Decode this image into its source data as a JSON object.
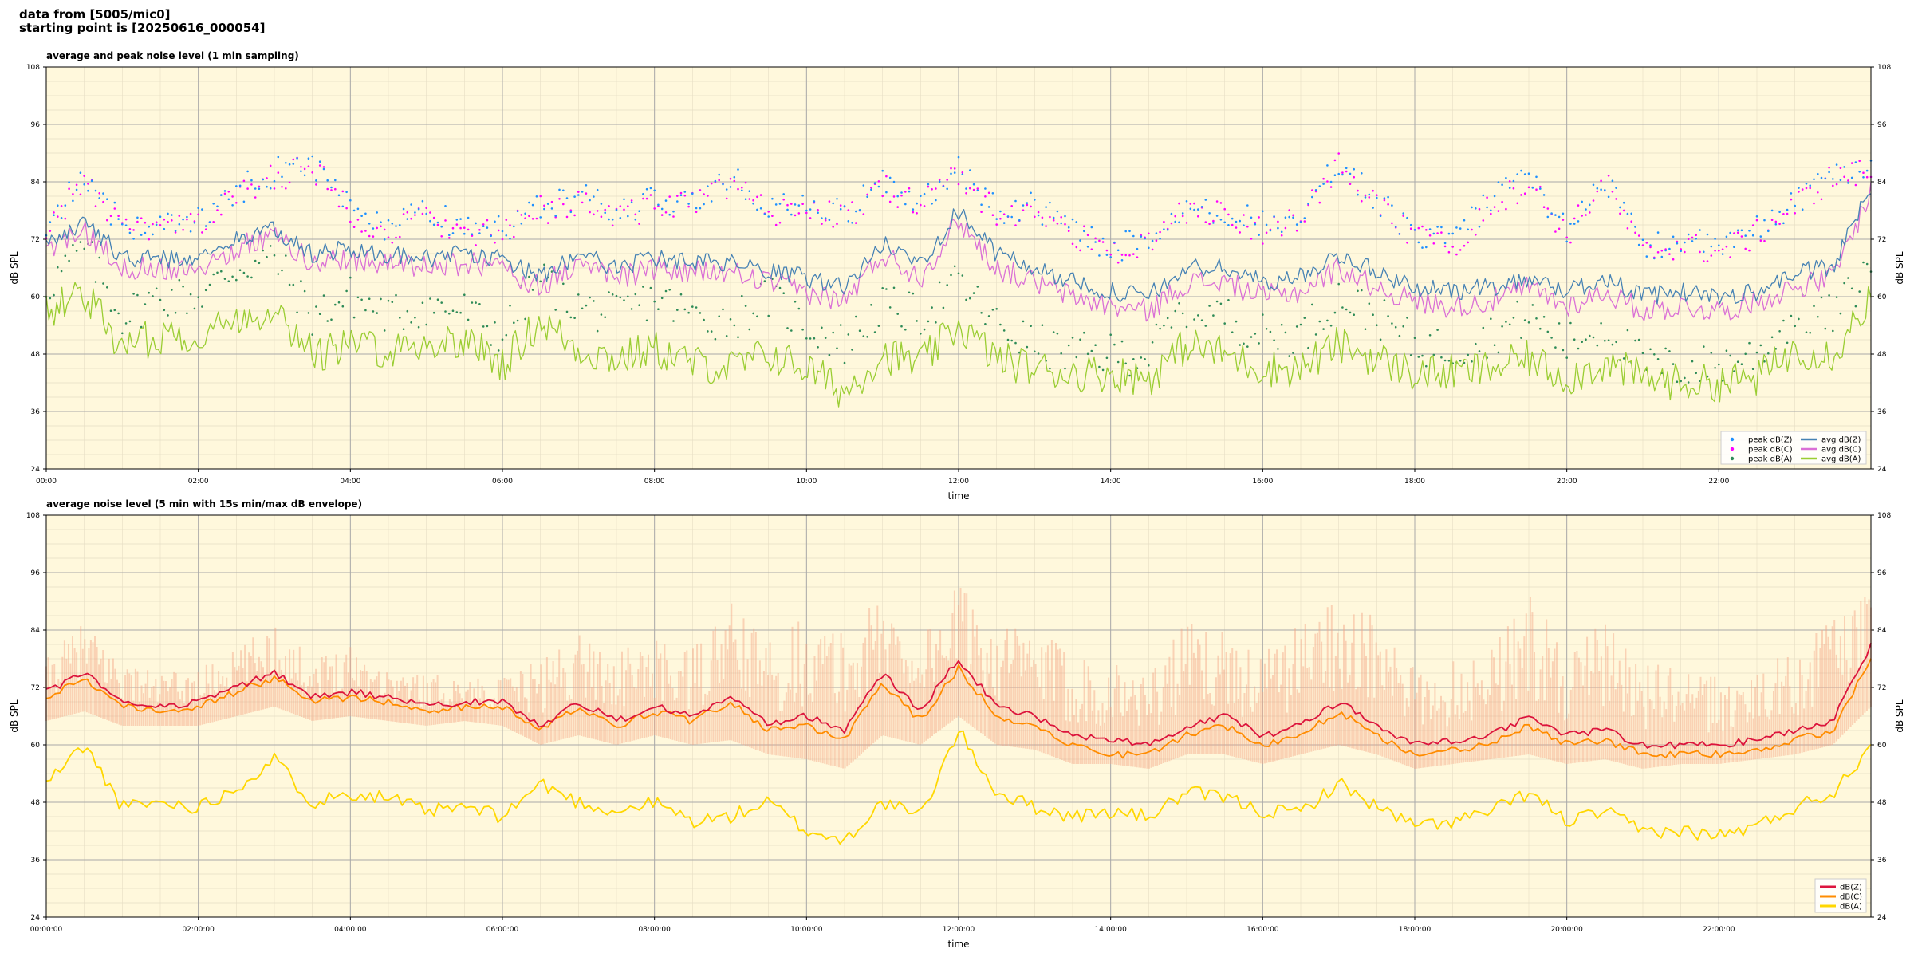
{
  "header": {
    "line1": "data from [5005/mic0]",
    "line2": "starting point is [20250616_000054]"
  },
  "colors": {
    "plot_bg": "#fff8dc",
    "avg_z": "#4682b4",
    "avg_c": "#da70d6",
    "avg_a": "#9acd32",
    "peak_z": "#1e90ff",
    "peak_c": "#ff00ff",
    "peak_a": "#2e8b57",
    "env_fill": "#f4a582",
    "five_z": "#dc143c",
    "five_c": "#ff8c00",
    "five_a": "#ffd700"
  },
  "chart_data": [
    {
      "type": "line",
      "title": "average and peak noise level (1 min sampling)",
      "xlabel": "time",
      "ylabel": "dB SPL",
      "y_right_label": "dB SPL",
      "ylim": [
        24,
        108
      ],
      "xlim_hours": [
        0,
        24
      ],
      "yticks": [
        "24",
        "36",
        "48",
        "60",
        "72",
        "84",
        "96",
        "108"
      ],
      "xticks": [
        "00:00",
        "02:00",
        "04:00",
        "06:00",
        "08:00",
        "10:00",
        "12:00",
        "14:00",
        "16:00",
        "18:00",
        "20:00",
        "22:00"
      ],
      "grid": true,
      "legend_position": "lower right",
      "legend": [
        "peak dB(Z)",
        "peak dB(C)",
        "peak dB(A)",
        "avg dB(Z)",
        "avg dB(C)",
        "avg dB(A)"
      ],
      "x_hours": [
        0,
        0.5,
        1,
        1.5,
        2,
        2.5,
        3,
        3.5,
        4,
        4.5,
        5,
        5.5,
        6,
        6.5,
        7,
        7.5,
        8,
        8.5,
        9,
        9.5,
        10,
        10.5,
        11,
        11.5,
        12,
        12.5,
        13,
        13.5,
        14,
        14.5,
        15,
        15.5,
        16,
        16.5,
        17,
        17.5,
        18,
        18.5,
        19,
        19.5,
        20,
        20.5,
        21,
        21.5,
        22,
        22.5,
        23,
        23.5,
        24
      ],
      "series": [
        {
          "name": "avg dB(Z)",
          "values": [
            71,
            76,
            68,
            68,
            68,
            72,
            74,
            69,
            70,
            69,
            68,
            69,
            68,
            64,
            69,
            66,
            68,
            67,
            67,
            65,
            64,
            62,
            71,
            67,
            78,
            69,
            66,
            63,
            61,
            60,
            66,
            66,
            63,
            64,
            69,
            65,
            62,
            61,
            62,
            64,
            61,
            64,
            60,
            61,
            60,
            61,
            65,
            66,
            83
          ]
        },
        {
          "name": "avg dB(C)",
          "values": [
            69,
            74,
            66,
            66,
            66,
            70,
            73,
            67,
            68,
            67,
            66,
            67,
            66,
            62,
            67,
            64,
            66,
            65,
            65,
            63,
            61,
            59,
            69,
            64,
            76,
            66,
            63,
            60,
            58,
            57,
            63,
            63,
            60,
            61,
            66,
            62,
            59,
            58,
            59,
            62,
            58,
            61,
            57,
            58,
            57,
            59,
            62,
            64,
            82
          ]
        },
        {
          "name": "avg dB(A)",
          "values": [
            57,
            61,
            49,
            52,
            52,
            55,
            58,
            48,
            50,
            49,
            50,
            51,
            46,
            55,
            49,
            47,
            49,
            46,
            45,
            48,
            45,
            40,
            48,
            46,
            54,
            47,
            45,
            44,
            44,
            43,
            50,
            48,
            45,
            45,
            50,
            47,
            44,
            44,
            45,
            47,
            43,
            46,
            43,
            42,
            42,
            43,
            49,
            48,
            60
          ]
        },
        {
          "name": "peak dB(Z)",
          "values": [
            75,
            85,
            75,
            75,
            76,
            82,
            86,
            88,
            79,
            74,
            78,
            74,
            74,
            79,
            81,
            78,
            80,
            80,
            85,
            78,
            80,
            77,
            84,
            80,
            87,
            78,
            79,
            74,
            70,
            72,
            79,
            78,
            75,
            78,
            88,
            80,
            73,
            72,
            80,
            85,
            74,
            85,
            70,
            72,
            70,
            74,
            80,
            86,
            87
          ]
        },
        {
          "name": "peak dB(C)",
          "values": [
            74,
            84,
            74,
            74,
            75,
            81,
            85,
            87,
            78,
            73,
            77,
            73,
            73,
            78,
            80,
            77,
            79,
            79,
            84,
            77,
            79,
            76,
            83,
            79,
            86,
            77,
            78,
            73,
            69,
            71,
            78,
            77,
            74,
            77,
            87,
            79,
            72,
            71,
            79,
            84,
            73,
            84,
            69,
            71,
            69,
            73,
            79,
            85,
            86
          ]
        },
        {
          "name": "peak dB(A)",
          "values": [
            62,
            70,
            56,
            60,
            60,
            66,
            68,
            56,
            60,
            56,
            58,
            57,
            52,
            64,
            58,
            56,
            60,
            56,
            55,
            60,
            54,
            50,
            58,
            56,
            63,
            54,
            50,
            48,
            48,
            48,
            58,
            56,
            52,
            52,
            60,
            56,
            50,
            49,
            52,
            56,
            50,
            54,
            46,
            45,
            46,
            48,
            56,
            56,
            66
          ]
        }
      ]
    },
    {
      "type": "line",
      "title": "average noise level (5 min with 15s min/max dB envelope)",
      "xlabel": "time",
      "ylabel": "dB SPL",
      "y_right_label": "dB SPL",
      "ylim": [
        24,
        108
      ],
      "xlim_hours": [
        0,
        24
      ],
      "yticks": [
        "24",
        "36",
        "48",
        "60",
        "72",
        "84",
        "96",
        "108"
      ],
      "xticks": [
        "00:00:00",
        "02:00:00",
        "04:00:00",
        "06:00:00",
        "08:00:00",
        "10:00:00",
        "12:00:00",
        "14:00:00",
        "16:00:00",
        "18:00:00",
        "20:00:00",
        "22:00:00"
      ],
      "grid": true,
      "legend_position": "lower right",
      "legend": [
        "dB(Z)",
        "dB(C)",
        "dB(A)"
      ],
      "x_hours": [
        0,
        0.5,
        1,
        1.5,
        2,
        2.5,
        3,
        3.5,
        4,
        4.5,
        5,
        5.5,
        6,
        6.5,
        7,
        7.5,
        8,
        8.5,
        9,
        9.5,
        10,
        10.5,
        11,
        11.5,
        12,
        12.5,
        13,
        13.5,
        14,
        14.5,
        15,
        15.5,
        16,
        16.5,
        17,
        17.5,
        18,
        18.5,
        19,
        19.5,
        20,
        20.5,
        21,
        21.5,
        22,
        22.5,
        23,
        23.5,
        24
      ],
      "series": [
        {
          "name": "dB(Z)",
          "values": [
            71,
            75,
            69,
            68,
            69,
            72,
            75,
            70,
            71,
            70,
            68,
            69,
            69,
            64,
            69,
            65,
            68,
            66,
            70,
            64,
            66,
            63,
            75,
            67,
            78,
            68,
            66,
            62,
            61,
            60,
            64,
            66,
            62,
            64,
            69,
            64,
            60,
            61,
            62,
            66,
            62,
            63,
            60,
            60,
            60,
            61,
            63,
            65,
            81
          ]
        },
        {
          "name": "dB(C)",
          "values": [
            70,
            74,
            68,
            67,
            68,
            71,
            74,
            69,
            70,
            69,
            67,
            68,
            68,
            63,
            68,
            64,
            67,
            65,
            69,
            63,
            64,
            61,
            73,
            65,
            76,
            66,
            64,
            60,
            58,
            58,
            62,
            64,
            60,
            62,
            67,
            62,
            58,
            59,
            60,
            64,
            60,
            61,
            58,
            58,
            58,
            59,
            61,
            63,
            78
          ]
        },
        {
          "name": "dB(A)",
          "values": [
            52,
            60,
            47,
            48,
            47,
            51,
            57,
            48,
            50,
            49,
            46,
            47,
            45,
            52,
            48,
            46,
            48,
            44,
            45,
            48,
            42,
            40,
            48,
            45,
            63,
            50,
            47,
            45,
            46,
            45,
            50,
            49,
            46,
            46,
            52,
            47,
            43,
            44,
            46,
            50,
            44,
            46,
            42,
            42,
            41,
            43,
            47,
            50,
            60
          ]
        },
        {
          "name": "dB envelope max",
          "values": [
            78,
            86,
            78,
            75,
            76,
            80,
            86,
            78,
            82,
            76,
            75,
            74,
            74,
            78,
            84,
            80,
            82,
            80,
            90,
            82,
            88,
            84,
            92,
            84,
            94,
            86,
            84,
            80,
            78,
            76,
            86,
            84,
            80,
            86,
            93,
            86,
            76,
            78,
            82,
            92,
            80,
            86,
            78,
            76,
            74,
            76,
            80,
            88,
            92
          ]
        },
        {
          "name": "dB envelope min",
          "values": [
            65,
            67,
            64,
            64,
            64,
            66,
            68,
            65,
            66,
            65,
            64,
            65,
            64,
            60,
            62,
            60,
            62,
            60,
            61,
            58,
            57,
            55,
            62,
            60,
            66,
            60,
            59,
            56,
            56,
            55,
            58,
            58,
            56,
            58,
            60,
            58,
            55,
            56,
            57,
            58,
            56,
            57,
            55,
            56,
            56,
            57,
            58,
            60,
            68
          ]
        }
      ]
    }
  ]
}
